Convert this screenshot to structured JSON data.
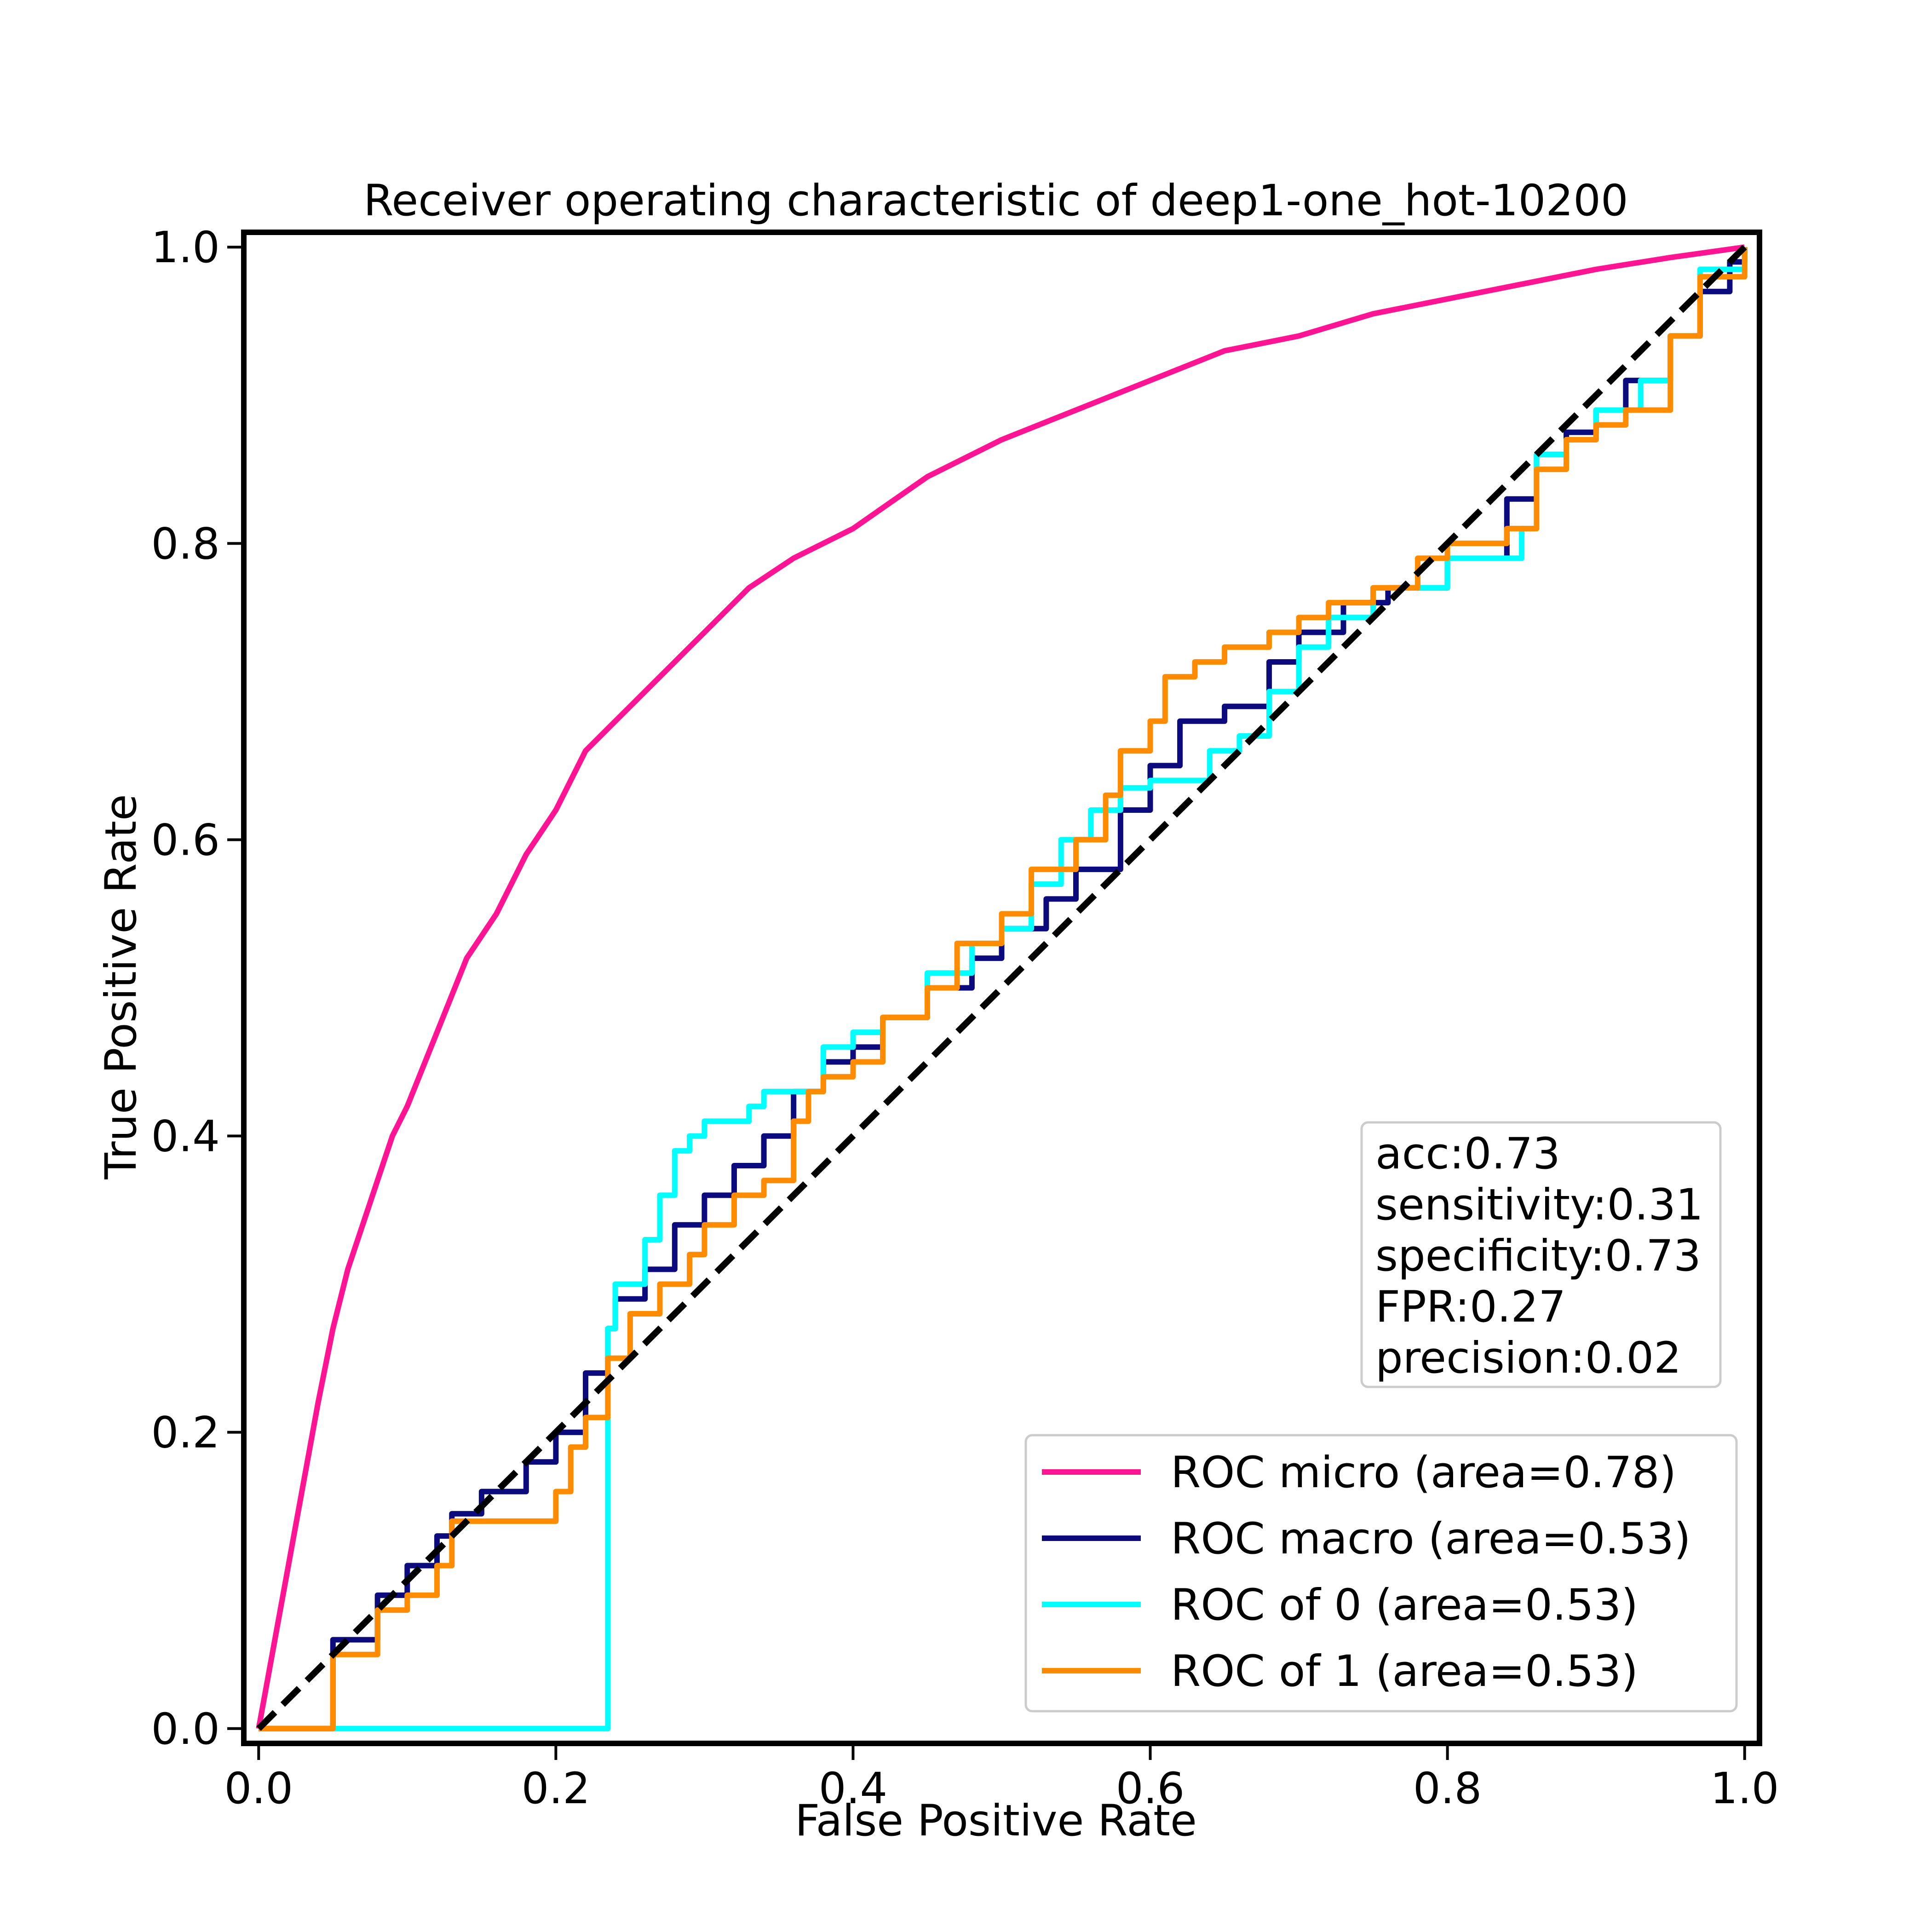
{
  "chart_data": {
    "type": "line",
    "title": "Receiver operating characteristic of deep1-one_hot-10200",
    "xlabel": "False Positive Rate",
    "ylabel": "True Positive Rate",
    "xlim": [
      -0.01,
      1.01
    ],
    "ylim": [
      -0.01,
      1.01
    ],
    "xticks": [
      "0.0",
      "0.2",
      "0.4",
      "0.6",
      "0.8",
      "1.0"
    ],
    "yticks": [
      "0.0",
      "0.2",
      "0.4",
      "0.6",
      "0.8",
      "1.0"
    ],
    "grid": false,
    "legend_position": "lower-right",
    "annotation_position": "right",
    "annotation": [
      "acc:0.73",
      "sensitivity:0.31",
      "specificity:0.73",
      "FPR:0.27",
      "precision:0.02"
    ],
    "series": [
      {
        "name": "ROC micro (area=0.78)",
        "color": "#ff1493",
        "dashed": false,
        "step": false,
        "x": [
          0,
          0.02,
          0.04,
          0.05,
          0.06,
          0.07,
          0.08,
          0.09,
          0.1,
          0.12,
          0.14,
          0.16,
          0.18,
          0.2,
          0.22,
          0.24,
          0.26,
          0.28,
          0.3,
          0.33,
          0.36,
          0.4,
          0.45,
          0.5,
          0.55,
          0.6,
          0.65,
          0.7,
          0.75,
          0.8,
          0.85,
          0.9,
          0.95,
          1.0
        ],
        "y": [
          0,
          0.11,
          0.22,
          0.27,
          0.31,
          0.34,
          0.37,
          0.4,
          0.42,
          0.47,
          0.52,
          0.55,
          0.59,
          0.62,
          0.66,
          0.68,
          0.7,
          0.72,
          0.74,
          0.77,
          0.79,
          0.81,
          0.845,
          0.87,
          0.89,
          0.91,
          0.93,
          0.94,
          0.955,
          0.965,
          0.975,
          0.985,
          0.993,
          1.0
        ]
      },
      {
        "name": "ROC macro (area=0.53)",
        "color": "#0b0b7e",
        "dashed": false,
        "step": true,
        "x": [
          0,
          0.05,
          0.08,
          0.1,
          0.12,
          0.13,
          0.15,
          0.18,
          0.2,
          0.22,
          0.235,
          0.24,
          0.26,
          0.28,
          0.3,
          0.32,
          0.34,
          0.36,
          0.38,
          0.4,
          0.42,
          0.45,
          0.48,
          0.5,
          0.53,
          0.55,
          0.58,
          0.6,
          0.62,
          0.65,
          0.68,
          0.7,
          0.73,
          0.76,
          0.8,
          0.84,
          0.86,
          0.88,
          0.9,
          0.92,
          0.95,
          0.97,
          0.99,
          1.0
        ],
        "y": [
          0,
          0.06,
          0.09,
          0.11,
          0.13,
          0.145,
          0.16,
          0.18,
          0.2,
          0.24,
          0.27,
          0.29,
          0.31,
          0.34,
          0.36,
          0.38,
          0.4,
          0.43,
          0.45,
          0.46,
          0.48,
          0.5,
          0.52,
          0.54,
          0.56,
          0.58,
          0.62,
          0.65,
          0.68,
          0.69,
          0.72,
          0.74,
          0.76,
          0.77,
          0.79,
          0.83,
          0.86,
          0.875,
          0.89,
          0.91,
          0.94,
          0.97,
          0.99,
          1.0
        ]
      },
      {
        "name": "ROC of 0 (area=0.53)",
        "color": "#00ffff",
        "dashed": false,
        "step": true,
        "x": [
          0,
          0.235,
          0.24,
          0.26,
          0.27,
          0.28,
          0.29,
          0.3,
          0.33,
          0.34,
          0.35,
          0.38,
          0.4,
          0.42,
          0.45,
          0.48,
          0.5,
          0.52,
          0.54,
          0.56,
          0.58,
          0.6,
          0.62,
          0.64,
          0.66,
          0.68,
          0.7,
          0.72,
          0.75,
          0.8,
          0.85,
          0.86,
          0.88,
          0.9,
          0.93,
          0.95,
          0.97,
          1.0
        ],
        "y": [
          0,
          0.27,
          0.3,
          0.33,
          0.36,
          0.39,
          0.4,
          0.41,
          0.42,
          0.43,
          0.43,
          0.46,
          0.47,
          0.48,
          0.51,
          0.53,
          0.54,
          0.57,
          0.6,
          0.62,
          0.635,
          0.64,
          0.64,
          0.66,
          0.67,
          0.7,
          0.73,
          0.75,
          0.77,
          0.79,
          0.81,
          0.86,
          0.87,
          0.89,
          0.91,
          0.94,
          0.985,
          1.0
        ]
      },
      {
        "name": "ROC of 1 (area=0.53)",
        "color": "#ff8c00",
        "dashed": false,
        "step": true,
        "x": [
          0,
          0.05,
          0.08,
          0.1,
          0.12,
          0.13,
          0.18,
          0.2,
          0.21,
          0.22,
          0.235,
          0.25,
          0.27,
          0.29,
          0.3,
          0.32,
          0.34,
          0.36,
          0.37,
          0.38,
          0.4,
          0.42,
          0.45,
          0.47,
          0.5,
          0.52,
          0.55,
          0.57,
          0.58,
          0.6,
          0.61,
          0.63,
          0.65,
          0.68,
          0.7,
          0.72,
          0.75,
          0.78,
          0.8,
          0.84,
          0.86,
          0.88,
          0.9,
          0.92,
          0.95,
          0.97,
          1.0
        ],
        "y": [
          0,
          0.05,
          0.08,
          0.09,
          0.11,
          0.14,
          0.14,
          0.16,
          0.19,
          0.21,
          0.25,
          0.28,
          0.3,
          0.32,
          0.34,
          0.36,
          0.37,
          0.41,
          0.43,
          0.44,
          0.45,
          0.48,
          0.5,
          0.53,
          0.55,
          0.58,
          0.6,
          0.63,
          0.66,
          0.68,
          0.71,
          0.72,
          0.73,
          0.74,
          0.75,
          0.76,
          0.77,
          0.79,
          0.8,
          0.81,
          0.85,
          0.87,
          0.88,
          0.89,
          0.94,
          0.98,
          1.0
        ]
      },
      {
        "name": "",
        "color": "#000000",
        "dashed": true,
        "step": false,
        "x": [
          0,
          1
        ],
        "y": [
          0,
          1
        ]
      }
    ]
  }
}
